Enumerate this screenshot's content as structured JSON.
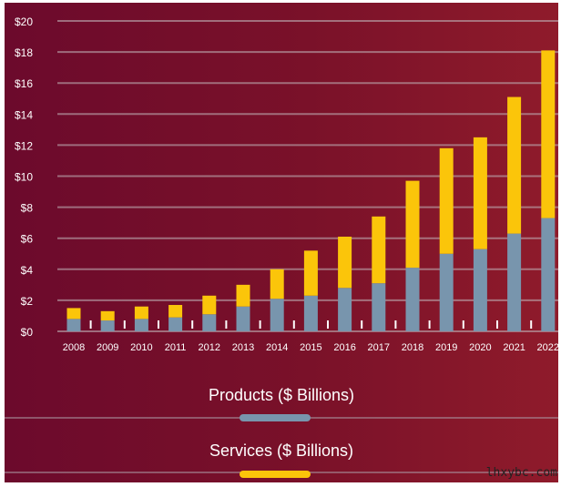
{
  "chart_data": {
    "type": "bar",
    "stacked": true,
    "categories": [
      "2008",
      "2009",
      "2010",
      "2011",
      "2012",
      "2013",
      "2014",
      "2015",
      "2016",
      "2017",
      "2018",
      "2019",
      "2020",
      "2021",
      "2022"
    ],
    "series": [
      {
        "name": "Products ($ Billions)",
        "color": "#7895ad",
        "values": [
          0.8,
          0.7,
          0.8,
          0.9,
          1.1,
          1.6,
          2.1,
          2.3,
          2.8,
          3.1,
          4.1,
          5.0,
          5.3,
          6.3,
          7.3
        ]
      },
      {
        "name": "Services ($ Billions)",
        "color": "#fbc50a",
        "values": [
          0.7,
          0.6,
          0.8,
          0.8,
          1.2,
          1.4,
          1.9,
          2.9,
          3.3,
          4.3,
          5.6,
          6.8,
          7.2,
          8.8,
          10.8
        ]
      }
    ],
    "yticks": [
      "$0",
      "$2",
      "$4",
      "$6",
      "$8",
      "$10",
      "$12",
      "$14",
      "$16",
      "$18",
      "$20"
    ],
    "ylim": [
      0,
      20
    ],
    "grid": true,
    "legend_position": "bottom",
    "title": "",
    "xlabel": "",
    "ylabel": ""
  },
  "watermark": "lhxybc.com"
}
